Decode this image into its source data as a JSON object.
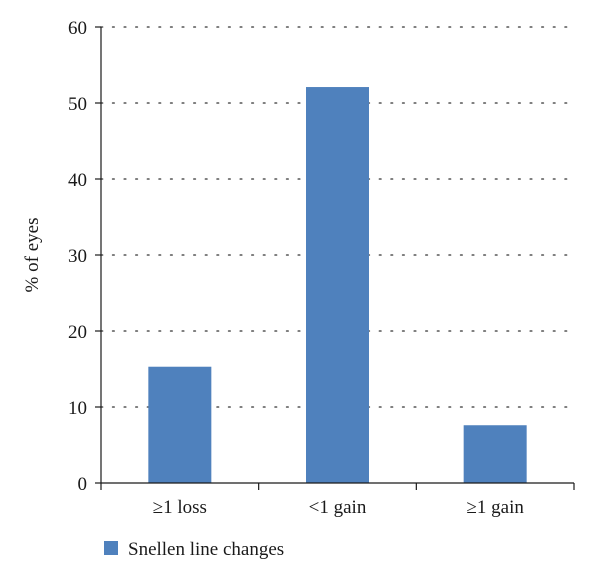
{
  "chart_data": {
    "type": "bar",
    "categories": [
      "≥1 loss",
      "<1 gain",
      "≥1 gain"
    ],
    "series": [
      {
        "name": "Snellen line changes",
        "values": [
          15.3,
          52.1,
          7.6
        ]
      }
    ],
    "xlabel": "",
    "ylabel": "% of eyes",
    "ylim": [
      0,
      60
    ],
    "yticks": [
      0,
      10,
      20,
      30,
      40,
      50,
      60
    ],
    "grid": true,
    "grid_style": "dotted",
    "legend": "bottom-left",
    "bar_color": "#4f81bd"
  }
}
